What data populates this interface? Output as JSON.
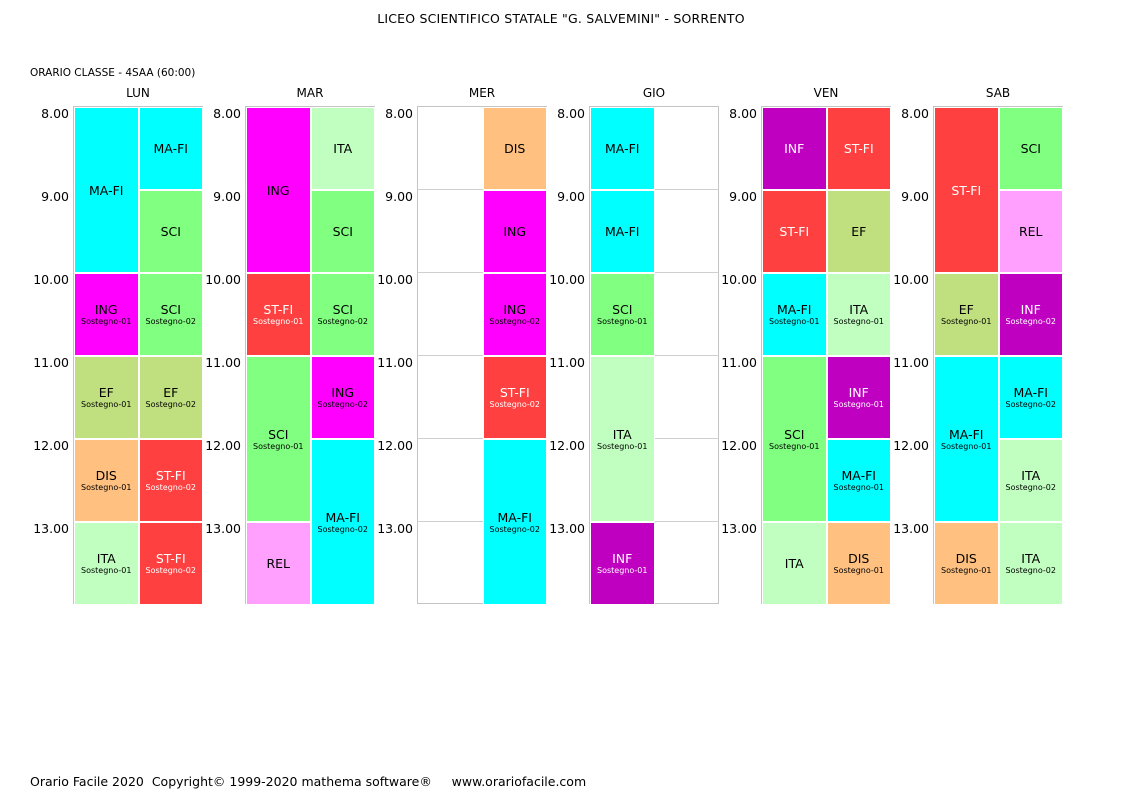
{
  "header": {
    "title": "LICEO SCIENTIFICO STATALE \"G. SALVEMINI\" - SORRENTO",
    "class_label": "ORARIO CLASSE  -  4SAA (60:00)"
  },
  "footer": {
    "text": "Orario Facile 2020  Copyright© 1999-2020 mathema software®     www.orariofacile.com"
  },
  "times": [
    "8.00",
    "9.00",
    "10.00",
    "11.00",
    "12.00",
    "13.00"
  ],
  "colors": {
    "MA-FI": "#00ffff",
    "ING": "#ff00ff",
    "ITA": "#c0ffc0",
    "SCI": "#80ff80",
    "DIS": "#ffc080",
    "ST-FI": "#ff4040",
    "EF": "#c0e080",
    "INF": "#c000c0",
    "REL": "#ffa0ff"
  },
  "light_text_subjects": [
    "ST-FI",
    "INF"
  ],
  "days": [
    {
      "name": "LUN",
      "cells": [
        {
          "col": 0,
          "start": 0,
          "span": 2,
          "subject": "MA-FI",
          "note": ""
        },
        {
          "col": 1,
          "start": 0,
          "span": 1,
          "subject": "MA-FI",
          "note": ""
        },
        {
          "col": 1,
          "start": 1,
          "span": 1,
          "subject": "SCI",
          "note": ""
        },
        {
          "col": 0,
          "start": 2,
          "span": 1,
          "subject": "ING",
          "note": "Sostegno-01"
        },
        {
          "col": 1,
          "start": 2,
          "span": 1,
          "subject": "SCI",
          "note": "Sostegno-02"
        },
        {
          "col": 0,
          "start": 3,
          "span": 1,
          "subject": "EF",
          "note": "Sostegno-01"
        },
        {
          "col": 1,
          "start": 3,
          "span": 1,
          "subject": "EF",
          "note": "Sostegno-02"
        },
        {
          "col": 0,
          "start": 4,
          "span": 1,
          "subject": "DIS",
          "note": "Sostegno-01"
        },
        {
          "col": 1,
          "start": 4,
          "span": 1,
          "subject": "ST-FI",
          "note": "Sostegno-02"
        },
        {
          "col": 0,
          "start": 5,
          "span": 1,
          "subject": "ITA",
          "note": "Sostegno-01"
        },
        {
          "col": 1,
          "start": 5,
          "span": 1,
          "subject": "ST-FI",
          "note": "Sostegno-02"
        }
      ]
    },
    {
      "name": "MAR",
      "cells": [
        {
          "col": 0,
          "start": 0,
          "span": 2,
          "subject": "ING",
          "note": ""
        },
        {
          "col": 1,
          "start": 0,
          "span": 1,
          "subject": "ITA",
          "note": ""
        },
        {
          "col": 1,
          "start": 1,
          "span": 1,
          "subject": "SCI",
          "note": ""
        },
        {
          "col": 0,
          "start": 2,
          "span": 1,
          "subject": "ST-FI",
          "note": "Sostegno-01"
        },
        {
          "col": 1,
          "start": 2,
          "span": 1,
          "subject": "SCI",
          "note": "Sostegno-02"
        },
        {
          "col": 0,
          "start": 3,
          "span": 2,
          "subject": "SCI",
          "note": "Sostegno-01"
        },
        {
          "col": 1,
          "start": 3,
          "span": 1,
          "subject": "ING",
          "note": "Sostegno-02"
        },
        {
          "col": 1,
          "start": 4,
          "span": 2,
          "subject": "MA-FI",
          "note": "Sostegno-02"
        },
        {
          "col": 0,
          "start": 5,
          "span": 1,
          "subject": "REL",
          "note": ""
        }
      ]
    },
    {
      "name": "MER",
      "cells": [
        {
          "col": 1,
          "start": 0,
          "span": 1,
          "subject": "DIS",
          "note": ""
        },
        {
          "col": 1,
          "start": 1,
          "span": 1,
          "subject": "ING",
          "note": ""
        },
        {
          "col": 1,
          "start": 2,
          "span": 1,
          "subject": "ING",
          "note": "Sostegno-02"
        },
        {
          "col": 1,
          "start": 3,
          "span": 1,
          "subject": "ST-FI",
          "note": "Sostegno-02"
        },
        {
          "col": 1,
          "start": 4,
          "span": 2,
          "subject": "MA-FI",
          "note": "Sostegno-02"
        }
      ]
    },
    {
      "name": "GIO",
      "cells": [
        {
          "col": 0,
          "start": 0,
          "span": 1,
          "subject": "MA-FI",
          "note": ""
        },
        {
          "col": 0,
          "start": 1,
          "span": 1,
          "subject": "MA-FI",
          "note": ""
        },
        {
          "col": 0,
          "start": 2,
          "span": 1,
          "subject": "SCI",
          "note": "Sostegno-01"
        },
        {
          "col": 0,
          "start": 3,
          "span": 2,
          "subject": "ITA",
          "note": "Sostegno-01"
        },
        {
          "col": 0,
          "start": 5,
          "span": 1,
          "subject": "INF",
          "note": "Sostegno-01"
        }
      ]
    },
    {
      "name": "VEN",
      "cells": [
        {
          "col": 0,
          "start": 0,
          "span": 1,
          "subject": "INF",
          "note": ""
        },
        {
          "col": 1,
          "start": 0,
          "span": 1,
          "subject": "ST-FI",
          "note": ""
        },
        {
          "col": 0,
          "start": 1,
          "span": 1,
          "subject": "ST-FI",
          "note": ""
        },
        {
          "col": 1,
          "start": 1,
          "span": 1,
          "subject": "EF",
          "note": ""
        },
        {
          "col": 0,
          "start": 2,
          "span": 1,
          "subject": "MA-FI",
          "note": "Sostegno-01"
        },
        {
          "col": 1,
          "start": 2,
          "span": 1,
          "subject": "ITA",
          "note": "Sostegno-01"
        },
        {
          "col": 0,
          "start": 3,
          "span": 2,
          "subject": "SCI",
          "note": "Sostegno-01"
        },
        {
          "col": 1,
          "start": 3,
          "span": 1,
          "subject": "INF",
          "note": "Sostegno-01"
        },
        {
          "col": 1,
          "start": 4,
          "span": 1,
          "subject": "MA-FI",
          "note": "Sostegno-01"
        },
        {
          "col": 0,
          "start": 5,
          "span": 1,
          "subject": "ITA",
          "note": ""
        },
        {
          "col": 1,
          "start": 5,
          "span": 1,
          "subject": "DIS",
          "note": "Sostegno-01"
        }
      ]
    },
    {
      "name": "SAB",
      "cells": [
        {
          "col": 0,
          "start": 0,
          "span": 2,
          "subject": "ST-FI",
          "note": ""
        },
        {
          "col": 1,
          "start": 0,
          "span": 1,
          "subject": "SCI",
          "note": ""
        },
        {
          "col": 1,
          "start": 1,
          "span": 1,
          "subject": "REL",
          "note": ""
        },
        {
          "col": 0,
          "start": 2,
          "span": 1,
          "subject": "EF",
          "note": "Sostegno-01"
        },
        {
          "col": 1,
          "start": 2,
          "span": 1,
          "subject": "INF",
          "note": "Sostegno-02"
        },
        {
          "col": 0,
          "start": 3,
          "span": 2,
          "subject": "MA-FI",
          "note": "Sostegno-01"
        },
        {
          "col": 1,
          "start": 3,
          "span": 1,
          "subject": "MA-FI",
          "note": "Sostegno-02"
        },
        {
          "col": 1,
          "start": 4,
          "span": 1,
          "subject": "ITA",
          "note": "Sostegno-02"
        },
        {
          "col": 0,
          "start": 5,
          "span": 1,
          "subject": "DIS",
          "note": "Sostegno-01"
        },
        {
          "col": 1,
          "start": 5,
          "span": 1,
          "subject": "ITA",
          "note": "Sostegno-02"
        }
      ]
    }
  ]
}
